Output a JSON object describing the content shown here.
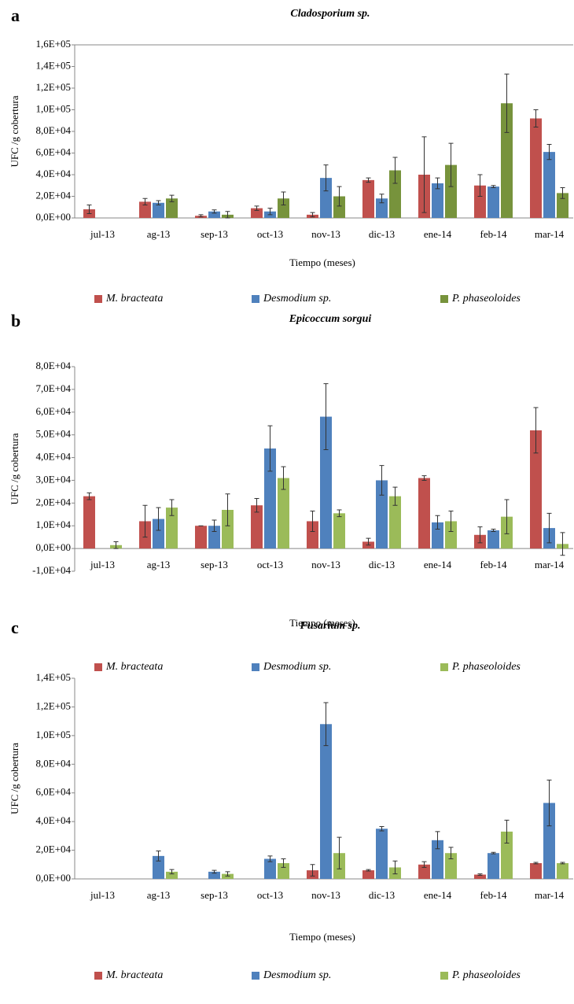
{
  "chart_data": [
    {
      "type": "bar",
      "panel": "a",
      "title": "Cladosporium sp.",
      "ylabel": "UFC /g cobertura",
      "xlabel": "Tiempo (meses)",
      "categories": [
        "jul-13",
        "ag-13",
        "sep-13",
        "oct-13",
        "nov-13",
        "dic-13",
        "ene-14",
        "feb-14",
        "mar-14"
      ],
      "series": [
        {
          "name": "M. bracteata",
          "color": "#c0504d",
          "values": [
            8000,
            15000,
            2000,
            9000,
            3000,
            35000,
            40000,
            30000,
            92000
          ],
          "errors": [
            4000,
            3000,
            1000,
            2000,
            2000,
            2000,
            35000,
            10000,
            8000
          ]
        },
        {
          "name": "Desmodium sp.",
          "color": "#4f81bd",
          "values": [
            null,
            14000,
            6000,
            6000,
            37000,
            18000,
            32000,
            29000,
            61000
          ],
          "errors": [
            null,
            2000,
            1500,
            3000,
            12000,
            4000,
            5000,
            1000,
            7000
          ]
        },
        {
          "name": "P. phaseoloides",
          "color": "#77933c",
          "values": [
            null,
            18000,
            3000,
            18000,
            20000,
            44000,
            49000,
            106000,
            23000
          ],
          "errors": [
            null,
            3000,
            3000,
            6000,
            9000,
            12000,
            20000,
            27000,
            5000
          ]
        }
      ],
      "ylim": [
        0,
        160000
      ],
      "yticks": [
        {
          "value": 0,
          "label": "0,0E+00"
        },
        {
          "value": 20000,
          "label": "2,0E+04"
        },
        {
          "value": 40000,
          "label": "4,0E+04"
        },
        {
          "value": 60000,
          "label": "6,0E+04"
        },
        {
          "value": 80000,
          "label": "8,0E+04"
        },
        {
          "value": 100000,
          "label": "1,0E+05"
        },
        {
          "value": 120000,
          "label": "1,2E+05"
        },
        {
          "value": 140000,
          "label": "1,4E+05"
        },
        {
          "value": 160000,
          "label": "1,6E+05"
        }
      ],
      "grid": false
    },
    {
      "type": "bar",
      "panel": "b",
      "title": "Epicoccum sorgui",
      "ylabel": "UFC /g cobertura",
      "xlabel": "Tiempo (meses)",
      "categories": [
        "jul-13",
        "ag-13",
        "sep-13",
        "oct-13",
        "nov-13",
        "dic-13",
        "ene-14",
        "feb-14",
        "mar-14"
      ],
      "series": [
        {
          "name": "M. bracteata",
          "color": "#c0504d",
          "values": [
            23000,
            12000,
            10000,
            19000,
            12000,
            3000,
            31000,
            6000,
            52000
          ],
          "errors": [
            1500,
            7000,
            0,
            3000,
            4500,
            1500,
            1000,
            3500,
            10000
          ]
        },
        {
          "name": "Desmodium sp.",
          "color": "#4f81bd",
          "values": [
            null,
            13000,
            10000,
            44000,
            58000,
            30000,
            11500,
            8000,
            9000
          ],
          "errors": [
            null,
            5000,
            2500,
            10000,
            14500,
            6500,
            3000,
            500,
            6500
          ]
        },
        {
          "name": "P. phaseoloides",
          "color": "#9bbb59",
          "values": [
            1500,
            18000,
            17000,
            31000,
            15500,
            23000,
            12000,
            14000,
            2000
          ],
          "errors": [
            1500,
            3500,
            7000,
            5000,
            1500,
            4000,
            4500,
            7500,
            5000
          ]
        }
      ],
      "ylim": [
        -10000,
        80000
      ],
      "yticks": [
        {
          "value": -10000,
          "label": "-1,0E+04"
        },
        {
          "value": 0,
          "label": "0,0E+00"
        },
        {
          "value": 10000,
          "label": "1,0E+04"
        },
        {
          "value": 20000,
          "label": "2,0E+04"
        },
        {
          "value": 30000,
          "label": "3,0E+04"
        },
        {
          "value": 40000,
          "label": "4,0E+04"
        },
        {
          "value": 50000,
          "label": "5,0E+04"
        },
        {
          "value": 60000,
          "label": "6,0E+04"
        },
        {
          "value": 70000,
          "label": "7,0E+04"
        },
        {
          "value": 80000,
          "label": "8,0E+04"
        }
      ],
      "grid": false
    },
    {
      "type": "bar",
      "panel": "c",
      "title": "Fusarium sp.",
      "ylabel": "UFC /g cobertura",
      "xlabel": "Tiempo (meses)",
      "categories": [
        "jul-13",
        "ag-13",
        "sep-13",
        "oct-13",
        "nov-13",
        "dic-13",
        "ene-14",
        "feb-14",
        "mar-14"
      ],
      "series": [
        {
          "name": "M. bracteata",
          "color": "#c0504d",
          "values": [
            null,
            null,
            null,
            null,
            6000,
            6000,
            10000,
            3000,
            11000
          ],
          "errors": [
            null,
            null,
            null,
            null,
            4000,
            500,
            2000,
            500,
            500
          ]
        },
        {
          "name": "Desmodium sp.",
          "color": "#4f81bd",
          "values": [
            null,
            16000,
            5000,
            14000,
            108000,
            35000,
            27000,
            18000,
            53000
          ],
          "errors": [
            null,
            3500,
            1000,
            2000,
            15000,
            1500,
            6000,
            500,
            16000
          ]
        },
        {
          "name": "P. phaseoloides",
          "color": "#9bbb59",
          "values": [
            null,
            5000,
            3500,
            11000,
            18000,
            8000,
            18000,
            33000,
            11000
          ],
          "errors": [
            null,
            1500,
            1500,
            3000,
            11000,
            4500,
            4000,
            8000,
            500
          ]
        }
      ],
      "ylim": [
        0,
        140000
      ],
      "yticks": [
        {
          "value": 0,
          "label": "0,0E+00"
        },
        {
          "value": 20000,
          "label": "2,0E+04"
        },
        {
          "value": 40000,
          "label": "4,0E+04"
        },
        {
          "value": 60000,
          "label": "6,0E+04"
        },
        {
          "value": 80000,
          "label": "8,0E+04"
        },
        {
          "value": 100000,
          "label": "1,0E+05"
        },
        {
          "value": 120000,
          "label": "1,2E+05"
        },
        {
          "value": 140000,
          "label": "1,4E+05"
        }
      ],
      "grid": false
    }
  ]
}
